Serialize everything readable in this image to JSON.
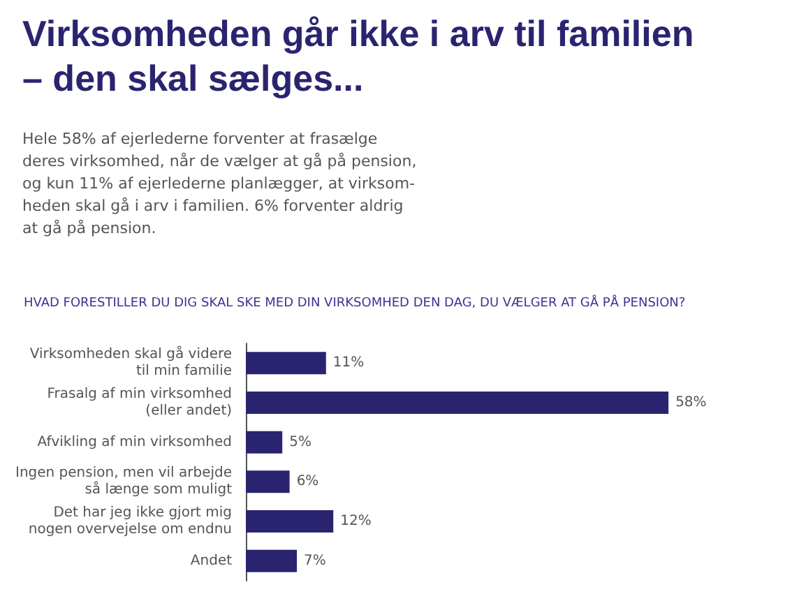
{
  "chart_data": {
    "type": "bar",
    "orientation": "horizontal",
    "title": "Virksomheden går ikke i arv til familien\n– den skal sælges...",
    "subtitle": "Hele 58% af ejerlederne forventer at frasælge\nderes virksomhed, når de vælger at gå på pension,\nog kun 11% af ejerlederne planlægger, at virksom-\nheden skal gå i arv i familien. 6% forventer aldrig\nat gå på pension.",
    "annotations": [
      "HVAD FORESTILLER DU DIG SKAL SKE MED DIN VIRKSOMHED DEN DAG, DU VÆLGER AT GÅ PÅ PENSION?"
    ],
    "categories": [
      "Virksomheden skal gå videre\ntil min familie",
      "Frasalg af min virksomhed\n(eller andet)",
      "Afvikling af min virksomhed",
      "Ingen pension, men vil arbejde\nså længe som muligt",
      "Det har jeg ikke gjort mig\nnogen overvejelse om endnu",
      "Andet"
    ],
    "values": [
      11,
      58,
      5,
      6,
      12,
      7
    ],
    "value_labels": [
      "11%",
      "58%",
      "5%",
      "6%",
      "12%",
      "7%"
    ],
    "color": "#2a2470"
  }
}
